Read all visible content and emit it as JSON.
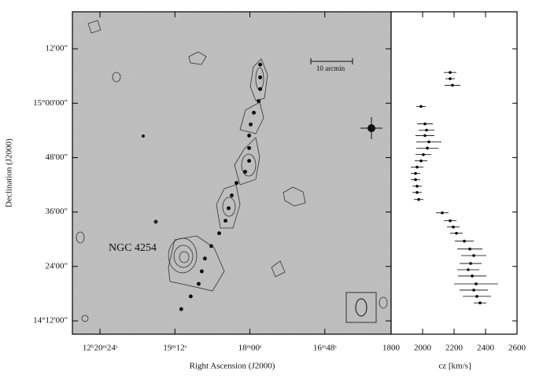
{
  "chart_data": [
    {
      "type": "image",
      "xlabel": "Right Ascension (J2000)",
      "ylabel": "Declination (J2000)",
      "xlim": [
        1250.5,
        944.3
      ],
      "ylim": [
        14.151,
        15.336
      ],
      "xticks": [
        {
          "value": 1224,
          "label": "12ʰ20ᵐ24ˢ"
        },
        {
          "value": 1152,
          "label": "19ᵐ12ˢ"
        },
        {
          "value": 1080,
          "label": "18ᵐ00ˢ"
        },
        {
          "value": 1008,
          "label": "16ᵐ48ˢ"
        }
      ],
      "yticks": [
        {
          "value": 15.2,
          "label": "12'00\""
        },
        {
          "value": 15.0,
          "label": "15°00'00\""
        },
        {
          "value": 14.8,
          "label": "48'00\""
        },
        {
          "value": 14.6,
          "label": "36'00\""
        },
        {
          "value": 14.4,
          "label": "24'00\""
        },
        {
          "value": 14.2,
          "label": "14°12'00\""
        }
      ],
      "annotations": [
        "NGC 4254",
        "10 arcmin"
      ],
      "series": [
        {
          "color": "#000000",
          "x": [
            1070.1,
            1070.1,
            1070.1,
            1071.6,
            1076.2,
            1079.2,
            1080.7,
            1080.7,
            1080.7,
            1084.5,
            1092.8,
            1097.4,
            1100.4,
            1103.4,
            1109.5,
            1117.1,
            1123.2,
            1126.2,
            1129.2,
            1136.8,
            1145.9
          ],
          "values": [
            15.142,
            15.095,
            15.052,
            15.008,
            14.965,
            14.922,
            14.881,
            14.835,
            14.788,
            14.748,
            14.707,
            14.661,
            14.614,
            14.568,
            14.522,
            14.475,
            14.429,
            14.382,
            14.336,
            14.29,
            14.243
          ]
        }
      ]
    },
    {
      "type": "scatter",
      "xlabel": "cz [km/s]",
      "xlim": [
        1800,
        2600
      ],
      "ylim": [
        14.151,
        15.336
      ],
      "xticks": [
        1800,
        2000,
        2200,
        2400,
        2600
      ],
      "series": [
        {
          "color": "#000000",
          "x": [
            2175,
            2175,
            2190,
            1990,
            2015,
            2025,
            2015,
            2040,
            2030,
            2005,
            1990,
            1965,
            1955,
            1955,
            1965,
            1965,
            1975,
            2125,
            2175,
            2195,
            2215,
            2265,
            2300,
            2325,
            2305,
            2290,
            2315,
            2340,
            2325,
            2345,
            2365
          ],
          "xerr": [
            40,
            30,
            50,
            30,
            50,
            50,
            60,
            80,
            70,
            50,
            40,
            40,
            30,
            30,
            30,
            30,
            30,
            40,
            40,
            40,
            40,
            60,
            80,
            80,
            70,
            70,
            90,
            140,
            90,
            90,
            40
          ],
          "values": [
            15.113,
            15.09,
            15.066,
            14.988,
            14.924,
            14.901,
            14.881,
            14.858,
            14.835,
            14.811,
            14.788,
            14.765,
            14.742,
            14.719,
            14.695,
            14.672,
            14.646,
            14.597,
            14.568,
            14.545,
            14.522,
            14.493,
            14.464,
            14.44,
            14.411,
            14.388,
            14.365,
            14.336,
            14.313,
            14.29,
            14.266
          ]
        }
      ]
    }
  ]
}
